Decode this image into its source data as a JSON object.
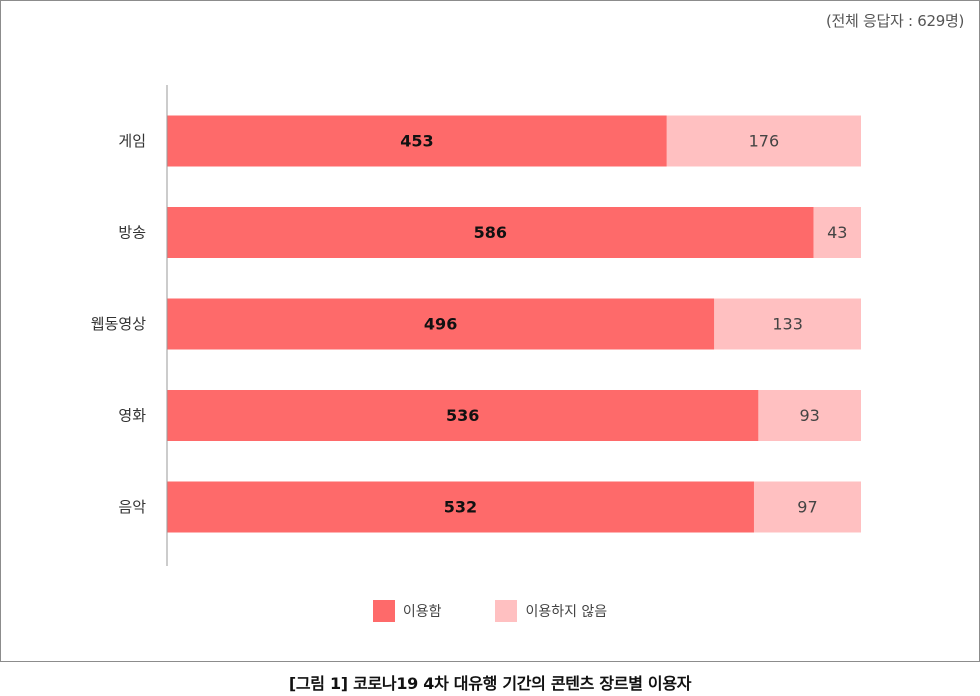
{
  "note": "(전체 응답자 : 629명)",
  "caption": "[그림 1] 코로나19 4차 대유행 기간의 콘텐츠 장르별 이용자",
  "colors": {
    "used": "#fe6a6a",
    "not_used": "#ffc0c1"
  },
  "chart_data": {
    "type": "bar",
    "orientation": "horizontal",
    "stacked": true,
    "categories": [
      "게임",
      "방송",
      "웹동영상",
      "영화",
      "음악"
    ],
    "series": [
      {
        "name": "이용함",
        "values": [
          453,
          586,
          496,
          536,
          532
        ]
      },
      {
        "name": "이용하지 않음",
        "values": [
          176,
          43,
          133,
          93,
          97
        ]
      }
    ],
    "xlim": [
      0,
      629
    ],
    "grid": false,
    "legend": "bottom-center"
  }
}
